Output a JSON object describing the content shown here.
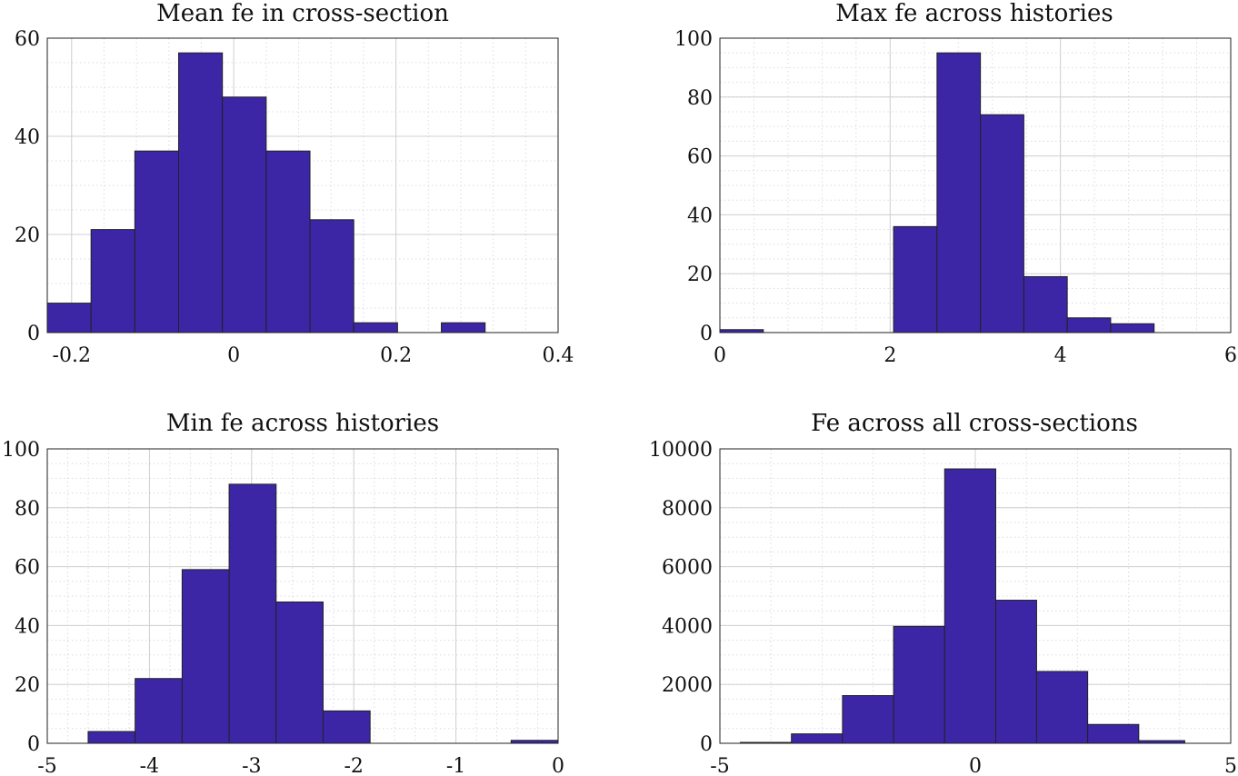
{
  "chart_data": [
    {
      "type": "bar",
      "subtype": "histogram",
      "title": "Mean fe in cross-section",
      "xlim": [
        -0.23,
        0.4
      ],
      "ylim": [
        0,
        60
      ],
      "xticks": [
        -0.2,
        0,
        0.2,
        0.4
      ],
      "xtick_labels": [
        "-0.2",
        "0",
        "0.2",
        "0.4"
      ],
      "yticks": [
        0,
        20,
        40,
        60
      ],
      "ytick_labels": [
        "0",
        "20",
        "40",
        "60"
      ],
      "bin_edges": [
        -0.23,
        -0.176,
        -0.122,
        -0.068,
        -0.014,
        0.04,
        0.094,
        0.148,
        0.202,
        0.256,
        0.31
      ],
      "values": [
        6,
        21,
        37,
        57,
        48,
        37,
        23,
        2,
        0,
        2
      ],
      "grid": true,
      "minor_grid": true,
      "color": "#3c26a6"
    },
    {
      "type": "bar",
      "subtype": "histogram",
      "title": "Max fe across histories",
      "xlim": [
        0,
        6
      ],
      "ylim": [
        0,
        100
      ],
      "xticks": [
        0,
        2,
        4,
        6
      ],
      "xtick_labels": [
        "0",
        "2",
        "4",
        "6"
      ],
      "yticks": [
        0,
        20,
        40,
        60,
        80,
        100
      ],
      "ytick_labels": [
        "0",
        "20",
        "40",
        "60",
        "80",
        "100"
      ],
      "bin_edges": [
        0,
        0.51,
        1.02,
        1.53,
        2.04,
        2.55,
        3.06,
        3.57,
        4.08,
        4.59,
        5.1
      ],
      "values": [
        1,
        0,
        0,
        0,
        36,
        95,
        74,
        19,
        5,
        3
      ],
      "grid": true,
      "minor_grid": true,
      "color": "#3c26a6"
    },
    {
      "type": "bar",
      "subtype": "histogram",
      "title": "Min fe across histories",
      "xlim": [
        -5,
        0
      ],
      "ylim": [
        0,
        100
      ],
      "xticks": [
        -5,
        -4,
        -3,
        -2,
        -1,
        0
      ],
      "xtick_labels": [
        "-5",
        "-4",
        "-3",
        "-2",
        "-1",
        "0"
      ],
      "yticks": [
        0,
        20,
        40,
        60,
        80,
        100
      ],
      "ytick_labels": [
        "0",
        "20",
        "40",
        "60",
        "80",
        "100"
      ],
      "bin_edges": [
        -4.6,
        -4.14,
        -3.68,
        -3.22,
        -2.76,
        -2.3,
        -1.84,
        -1.38,
        -0.92,
        -0.46,
        0
      ],
      "values": [
        4,
        22,
        59,
        88,
        48,
        11,
        0,
        0,
        0,
        1
      ],
      "grid": true,
      "minor_grid": true,
      "color": "#3c26a6"
    },
    {
      "type": "bar",
      "subtype": "histogram",
      "title": "Fe across all cross-sections",
      "xlim": [
        -5,
        5
      ],
      "ylim": [
        0,
        10000
      ],
      "xticks": [
        -5,
        0,
        5
      ],
      "xtick_labels": [
        "-5",
        "0",
        "5"
      ],
      "yticks": [
        0,
        2000,
        4000,
        6000,
        8000,
        10000
      ],
      "ytick_labels": [
        "0",
        "2000",
        "4000",
        "6000",
        "8000",
        "10000"
      ],
      "bin_edges": [
        -4.6,
        -3.6,
        -2.6,
        -1.6,
        -0.6,
        0.4,
        1.2,
        2.2,
        3.2,
        4.1
      ],
      "values": [
        30,
        320,
        1620,
        3970,
        9320,
        4860,
        2440,
        640,
        90
      ],
      "grid": true,
      "minor_grid": true,
      "color": "#3c26a6"
    }
  ]
}
